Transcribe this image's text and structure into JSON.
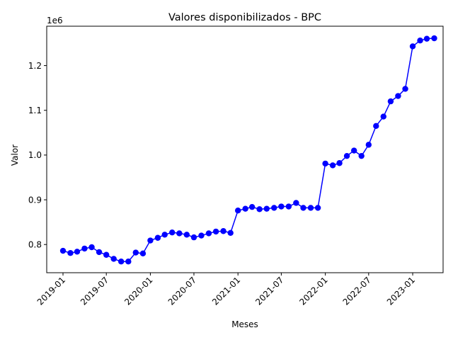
{
  "chart_data": {
    "type": "line",
    "title": "Valores disponibilizados - BPC",
    "xlabel": "Meses",
    "ylabel": "Valor",
    "y_offset_label": "1e6",
    "line_color": "#0000ff",
    "marker_color": "#0000ff",
    "grid": false,
    "x_ticks": [
      "2019-01",
      "2019-07",
      "2020-01",
      "2020-07",
      "2021-01",
      "2021-07",
      "2022-01",
      "2022-07",
      "2023-01"
    ],
    "y_ticks": [
      {
        "value": 0.8,
        "label": "0.8"
      },
      {
        "value": 0.9,
        "label": "0.9"
      },
      {
        "value": 1.0,
        "label": "1.0"
      },
      {
        "value": 1.1,
        "label": "1.1"
      },
      {
        "value": 1.2,
        "label": "1.2"
      }
    ],
    "ylim": [
      0.737,
      1.288
    ],
    "xlim": [
      "2018-10-25",
      "2023-05-08"
    ],
    "series": [
      {
        "x": [
          "2019-01",
          "2019-02",
          "2019-03",
          "2019-04",
          "2019-05",
          "2019-06",
          "2019-07",
          "2019-08",
          "2019-09",
          "2019-10",
          "2019-11",
          "2019-12",
          "2020-01",
          "2020-02",
          "2020-03",
          "2020-04",
          "2020-05",
          "2020-06",
          "2020-07",
          "2020-08",
          "2020-09",
          "2020-10",
          "2020-11",
          "2020-12",
          "2021-01",
          "2021-02",
          "2021-03",
          "2021-04",
          "2021-05",
          "2021-06",
          "2021-07",
          "2021-08",
          "2021-09",
          "2021-10",
          "2021-11",
          "2021-12",
          "2022-01",
          "2022-02",
          "2022-03",
          "2022-04",
          "2022-05",
          "2022-06",
          "2022-07",
          "2022-08",
          "2022-09",
          "2022-10",
          "2022-11",
          "2022-12",
          "2023-01",
          "2023-02",
          "2023-03",
          "2023-04"
        ],
        "values": [
          0.786,
          0.781,
          0.784,
          0.791,
          0.794,
          0.783,
          0.777,
          0.768,
          0.762,
          0.762,
          0.782,
          0.78,
          0.809,
          0.815,
          0.822,
          0.827,
          0.825,
          0.822,
          0.816,
          0.82,
          0.825,
          0.829,
          0.83,
          0.826,
          0.876,
          0.88,
          0.884,
          0.879,
          0.88,
          0.882,
          0.885,
          0.885,
          0.893,
          0.882,
          0.882,
          0.882,
          0.981,
          0.977,
          0.982,
          0.998,
          1.01,
          0.998,
          1.023,
          1.065,
          1.086,
          1.12,
          1.132,
          1.148,
          1.243,
          1.256,
          1.26,
          1.261
        ]
      }
    ]
  }
}
